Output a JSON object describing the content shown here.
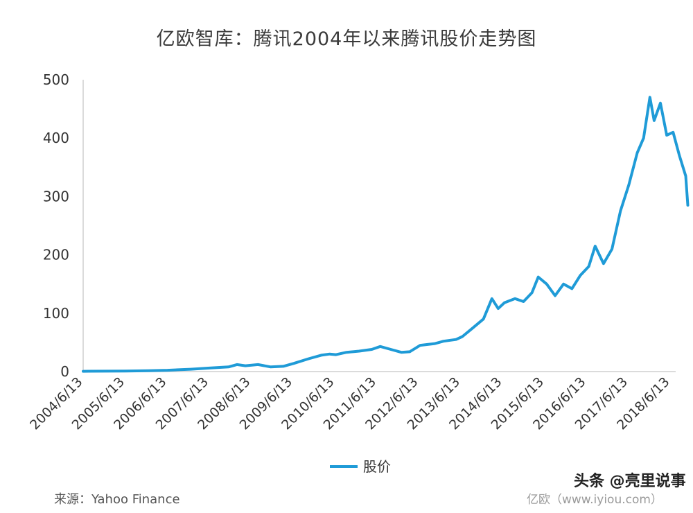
{
  "chart_data": {
    "type": "line",
    "title": "亿欧智库：腾讯2004年以来腾讯股价走势图",
    "xlabel": "",
    "ylabel": "",
    "ylim": [
      0,
      500
    ],
    "yticks": [
      0,
      100,
      200,
      300,
      400,
      500
    ],
    "xtick_labels": [
      "2004/6/13",
      "2005/6/13",
      "2006/6/13",
      "2007/6/13",
      "2008/6/13",
      "2009/6/13",
      "2010/6/13",
      "2011/6/13",
      "2012/6/13",
      "2013/6/13",
      "2014/6/13",
      "2015/6/13",
      "2016/6/13",
      "2017/6/13",
      "2018/6/13"
    ],
    "grid": false,
    "legend_position": "bottom-center",
    "line_color": "#1f9bd7",
    "series": [
      {
        "name": "股价",
        "points": [
          [
            2004.45,
            0.5
          ],
          [
            2005.0,
            0.7
          ],
          [
            2005.45,
            1.0
          ],
          [
            2006.0,
            1.5
          ],
          [
            2006.45,
            2.3
          ],
          [
            2007.0,
            4
          ],
          [
            2007.45,
            6
          ],
          [
            2007.9,
            8
          ],
          [
            2008.1,
            12
          ],
          [
            2008.3,
            10
          ],
          [
            2008.6,
            12
          ],
          [
            2008.9,
            8
          ],
          [
            2009.2,
            9
          ],
          [
            2009.45,
            14
          ],
          [
            2009.8,
            22
          ],
          [
            2010.1,
            28
          ],
          [
            2010.3,
            30
          ],
          [
            2010.45,
            29
          ],
          [
            2010.7,
            33
          ],
          [
            2011.0,
            35
          ],
          [
            2011.3,
            38
          ],
          [
            2011.5,
            43
          ],
          [
            2011.75,
            38
          ],
          [
            2012.0,
            33
          ],
          [
            2012.2,
            34
          ],
          [
            2012.45,
            45
          ],
          [
            2012.8,
            48
          ],
          [
            2013.0,
            52
          ],
          [
            2013.3,
            55
          ],
          [
            2013.45,
            60
          ],
          [
            2013.7,
            75
          ],
          [
            2013.95,
            90
          ],
          [
            2014.15,
            125
          ],
          [
            2014.3,
            108
          ],
          [
            2014.45,
            118
          ],
          [
            2014.7,
            125
          ],
          [
            2014.9,
            120
          ],
          [
            2015.1,
            135
          ],
          [
            2015.25,
            162
          ],
          [
            2015.45,
            150
          ],
          [
            2015.65,
            130
          ],
          [
            2015.85,
            150
          ],
          [
            2016.05,
            142
          ],
          [
            2016.25,
            165
          ],
          [
            2016.45,
            180
          ],
          [
            2016.6,
            215
          ],
          [
            2016.8,
            185
          ],
          [
            2017.0,
            210
          ],
          [
            2017.2,
            275
          ],
          [
            2017.4,
            320
          ],
          [
            2017.6,
            375
          ],
          [
            2017.75,
            400
          ],
          [
            2017.9,
            470
          ],
          [
            2018.0,
            430
          ],
          [
            2018.15,
            460
          ],
          [
            2018.3,
            405
          ],
          [
            2018.45,
            410
          ],
          [
            2018.6,
            370
          ],
          [
            2018.75,
            335
          ],
          [
            2018.8,
            285
          ]
        ]
      }
    ]
  },
  "footer": {
    "source": "来源：Yahoo Finance",
    "credit": "亿欧（www.iyiou.com）",
    "account": "头条 @亮里说事"
  }
}
